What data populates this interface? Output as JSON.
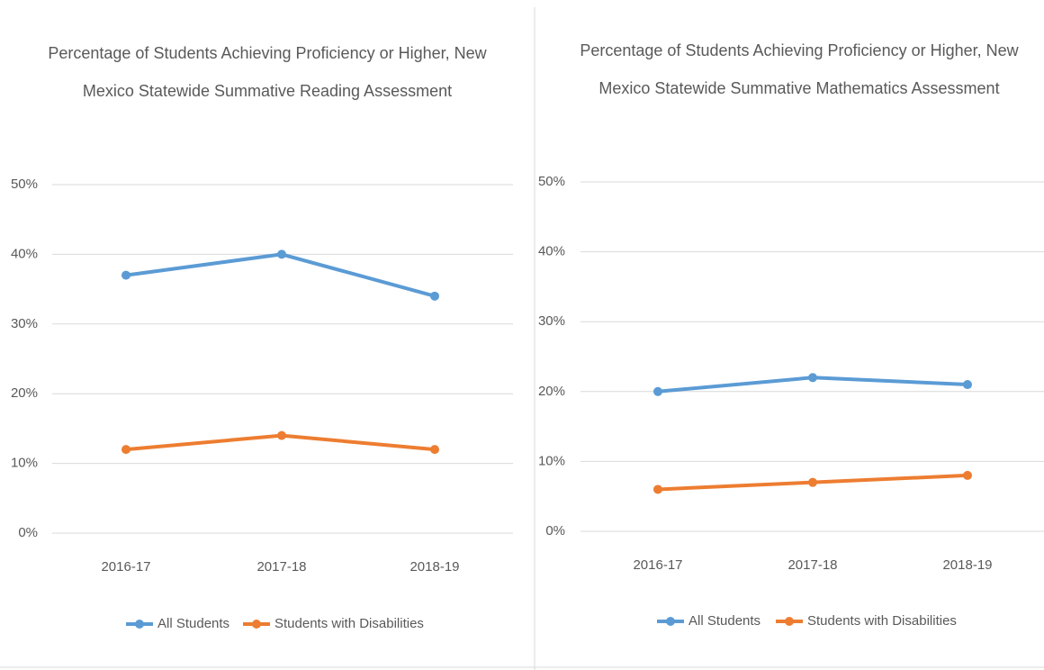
{
  "chart_data": [
    {
      "type": "line",
      "title": [
        "Percentage of Students Achieving Proficiency or Higher, New",
        "Mexico Statewide Summative Reading Assessment"
      ],
      "categories": [
        "2016-17",
        "2017-18",
        "2018-19"
      ],
      "series": [
        {
          "name": "All Students",
          "color": "#5b9bd5",
          "values": [
            37,
            40,
            34
          ]
        },
        {
          "name": "Students with Disabilities",
          "color": "#ed7d31",
          "values": [
            12,
            14,
            12
          ]
        }
      ],
      "ylim": [
        0,
        50
      ],
      "yticks": [
        {
          "value": 0,
          "label": "0%"
        },
        {
          "value": 10,
          "label": "10%"
        },
        {
          "value": 20,
          "label": "20%"
        },
        {
          "value": 30,
          "label": "30%"
        },
        {
          "value": 40,
          "label": "40%"
        },
        {
          "value": 50,
          "label": "50%"
        }
      ],
      "grid": true,
      "legend": "bottom"
    },
    {
      "type": "line",
      "title": [
        "Percentage of Students Achieving Proficiency or Higher, New",
        "Mexico Statewide Summative Mathematics Assessment"
      ],
      "categories": [
        "2016-17",
        "2017-18",
        "2018-19"
      ],
      "series": [
        {
          "name": "All Students",
          "color": "#5b9bd5",
          "values": [
            20,
            22,
            21
          ]
        },
        {
          "name": "Students with Disabilities",
          "color": "#ed7d31",
          "values": [
            6,
            7,
            8
          ]
        }
      ],
      "ylim": [
        0,
        50
      ],
      "yticks": [
        {
          "value": 0,
          "label": "0%"
        },
        {
          "value": 10,
          "label": "10%"
        },
        {
          "value": 20,
          "label": "20%"
        },
        {
          "value": 30,
          "label": "30%"
        },
        {
          "value": 40,
          "label": "40%"
        },
        {
          "value": 50,
          "label": "50%"
        }
      ],
      "grid": true,
      "legend": "bottom"
    }
  ]
}
